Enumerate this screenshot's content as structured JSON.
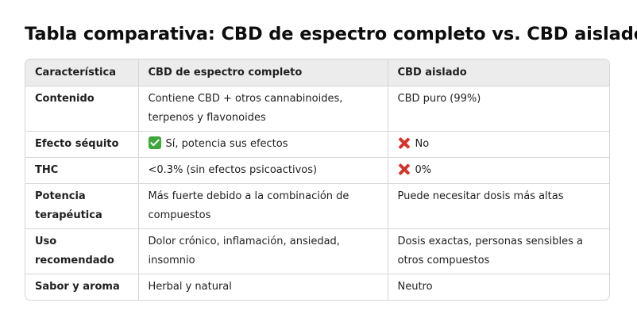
{
  "title": "Tabla comparativa: CBD de espectro completo vs. CBD aislado",
  "table": {
    "headers": [
      "Característica",
      "CBD de espectro completo",
      "CBD aislado"
    ],
    "rows": [
      {
        "feature": "Contenido",
        "full_spectrum": "Contiene CBD + otros cannabinoides, terpenos y flavonoides",
        "isolate": "CBD puro (99%)"
      },
      {
        "feature": "Efecto séquito",
        "full_spectrum": "Sí, potencia sus efectos",
        "full_spectrum_icon": "check-mark-icon",
        "isolate": "No",
        "isolate_icon": "cross-mark-icon"
      },
      {
        "feature": "THC",
        "full_spectrum": "<0.3% (sin efectos psicoactivos)",
        "isolate": "0%",
        "isolate_icon": "cross-mark-icon"
      },
      {
        "feature": "Potencia terapéutica",
        "full_spectrum": "Más fuerte debido a la combinación de compuestos",
        "isolate": "Puede necesitar dosis más altas"
      },
      {
        "feature": "Uso recomendado",
        "full_spectrum": "Dolor crónico, inflamación, ansiedad, insomnio",
        "isolate": "Dosis exactas, personas sensibles a otros compuestos"
      },
      {
        "feature": "Sabor y aroma",
        "full_spectrum": "Herbal y natural",
        "isolate": "Neutro"
      }
    ]
  },
  "colors": {
    "header_bg": "#ececec",
    "border": "#d6d6d6",
    "check_green": "#3ea73a",
    "cross_red": "#d2342b"
  }
}
